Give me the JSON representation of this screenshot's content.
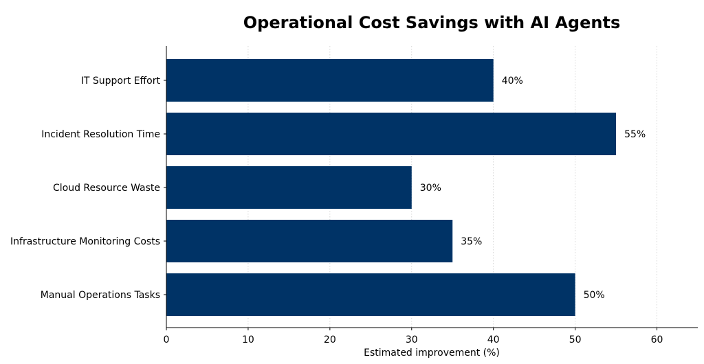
{
  "chart_data": {
    "type": "bar",
    "orientation": "horizontal",
    "title": "Operational Cost Savings with AI Agents",
    "xlabel": "Estimated improvement (%)",
    "ylabel": "",
    "xlim": [
      0,
      65
    ],
    "xticks": [
      0,
      10,
      20,
      30,
      40,
      50,
      60
    ],
    "grid": "vertical dotted",
    "bar_color": "#003366",
    "categories": [
      "IT Support Effort",
      "Incident Resolution Time",
      "Cloud Resource Waste",
      "Infrastructure Monitoring Costs",
      "Manual Operations Tasks"
    ],
    "values": [
      40,
      55,
      30,
      35,
      50
    ],
    "data_labels": [
      "40%",
      "55%",
      "30%",
      "35%",
      "50%"
    ]
  }
}
